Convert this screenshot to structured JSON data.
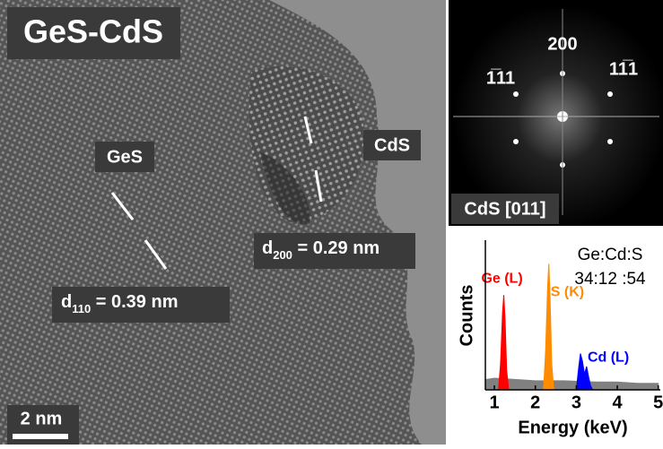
{
  "tem": {
    "title": "GeS-CdS",
    "labels": [
      "GeS",
      "CdS"
    ],
    "d110": {
      "symbol": "d",
      "sub": "110",
      "rest": " = 0.39 nm"
    },
    "d200": {
      "symbol": "d",
      "sub": "200",
      "rest": " = 0.29 nm"
    },
    "scale_bar": "2 nm"
  },
  "fft": {
    "spots": [
      "200",
      "1̅11",
      "11̅1"
    ],
    "zone": "CdS [011]"
  },
  "chart_data": {
    "type": "area",
    "xlabel": "Energy (keV)",
    "ylabel": "Counts",
    "annotations": [
      "Ge:Cd:S",
      "34:12 :54"
    ],
    "xlim": [
      0.78,
      5.05
    ],
    "ylim": [
      0,
      100
    ],
    "xticks": [
      1,
      2,
      3,
      4,
      5
    ],
    "series": [
      {
        "color": "#808080",
        "x": [
          0.8,
          1.0,
          1.5,
          2.0,
          2.7,
          3.5,
          4.0,
          4.5,
          5.0
        ],
        "values": [
          8,
          9,
          8,
          7,
          7,
          6,
          6,
          5,
          5
        ]
      },
      {
        "name": "Ge (L)",
        "color": "#ff0000",
        "x": [
          1.1,
          1.15,
          1.2,
          1.23,
          1.26,
          1.3,
          1.35
        ],
        "values": [
          0,
          20,
          60,
          73,
          55,
          15,
          0
        ]
      },
      {
        "name": "S (K)",
        "color": "#ff8c00",
        "x": [
          2.2,
          2.25,
          2.3,
          2.33,
          2.36,
          2.4,
          2.45
        ],
        "values": [
          0,
          30,
          80,
          97,
          70,
          20,
          0
        ]
      },
      {
        "name": "Cd (L)",
        "color": "#0000ff",
        "x": [
          3.0,
          3.05,
          3.1,
          3.15,
          3.2,
          3.25,
          3.3,
          3.35,
          3.4
        ],
        "values": [
          0,
          15,
          28,
          22,
          12,
          18,
          10,
          3,
          0
        ]
      }
    ]
  }
}
